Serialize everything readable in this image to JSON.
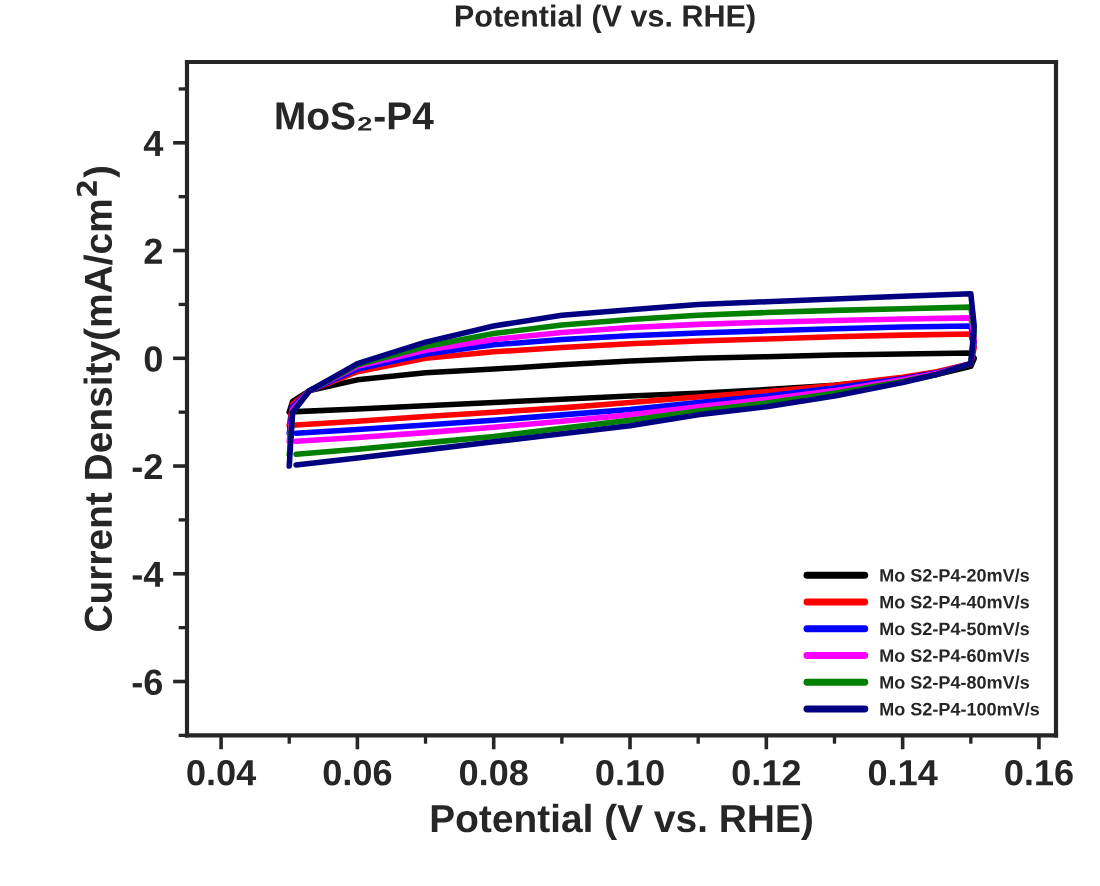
{
  "chart_data": {
    "type": "line",
    "xlabel": "Potential (V vs. RHE)",
    "ylabel": "Current Density(mA/cm$^{2}$)",
    "annotations": [
      "Potential (V vs. RHE)",
      "MoS₂-P4"
    ],
    "xlim": [
      0.035,
      0.1625
    ],
    "xticks": [
      {
        "value": 0.04,
        "label": "0.04"
      },
      {
        "value": 0.06,
        "label": "0.06"
      },
      {
        "value": 0.08,
        "label": "0.08"
      },
      {
        "value": 0.1,
        "label": "0.10"
      },
      {
        "value": 0.12,
        "label": "0.12"
      },
      {
        "value": 0.14,
        "label": "0.14"
      },
      {
        "value": 0.16,
        "label": "0.16"
      }
    ],
    "ylim": [
      -7,
      5.5
    ],
    "yticks": [
      -6,
      -4,
      -2,
      0,
      2,
      4
    ],
    "legend": "bottom right",
    "marker": "none",
    "line_style": "solid",
    "grid": false,
    "x": [
      0.05,
      0.0505,
      0.053,
      0.06,
      0.07,
      0.08,
      0.09,
      0.1,
      0.11,
      0.12,
      0.13,
      0.14,
      0.15,
      0.1505,
      0.15,
      0.145,
      0.14,
      0.13,
      0.12,
      0.11,
      0.1,
      0.09,
      0.08,
      0.07,
      0.06,
      0.051
    ],
    "series": [
      {
        "name": "Mo S2-P4-20mV/s",
        "color": "#000000",
        "values": [
          -1.0,
          -0.8,
          -0.6,
          -0.4,
          -0.27,
          -0.2,
          -0.12,
          -0.05,
          0.0,
          0.03,
          0.06,
          0.08,
          0.1,
          0.0,
          -0.15,
          -0.3,
          -0.38,
          -0.5,
          -0.58,
          -0.65,
          -0.7,
          -0.76,
          -0.82,
          -0.88,
          -0.94,
          -0.99
        ]
      },
      {
        "name": "Mo S2-P4-40mV/s",
        "color": "#ff0000",
        "values": [
          -1.25,
          -0.85,
          -0.6,
          -0.25,
          0.0,
          0.12,
          0.2,
          0.27,
          0.32,
          0.36,
          0.4,
          0.43,
          0.45,
          0.2,
          -0.1,
          -0.25,
          -0.35,
          -0.5,
          -0.62,
          -0.72,
          -0.82,
          -0.92,
          -1.0,
          -1.08,
          -1.17,
          -1.24
        ]
      },
      {
        "name": "Mo S2-P4-50mV/s",
        "color": "#0000ff",
        "values": [
          -1.4,
          -0.9,
          -0.6,
          -0.2,
          0.08,
          0.25,
          0.35,
          0.42,
          0.47,
          0.51,
          0.55,
          0.58,
          0.6,
          0.3,
          -0.1,
          -0.27,
          -0.38,
          -0.55,
          -0.7,
          -0.82,
          -0.95,
          -1.05,
          -1.15,
          -1.24,
          -1.32,
          -1.39
        ]
      },
      {
        "name": "Mo S2-P4-60mV/s",
        "color": "#ff00ff",
        "values": [
          -1.55,
          -0.95,
          -0.6,
          -0.15,
          0.15,
          0.35,
          0.48,
          0.57,
          0.63,
          0.67,
          0.7,
          0.73,
          0.75,
          0.4,
          -0.1,
          -0.28,
          -0.4,
          -0.6,
          -0.76,
          -0.9,
          -1.05,
          -1.17,
          -1.28,
          -1.38,
          -1.47,
          -1.54
        ]
      },
      {
        "name": "Mo S2-P4-80mV/s",
        "color": "#008000",
        "values": [
          -1.8,
          -1.0,
          -0.6,
          -0.12,
          0.22,
          0.46,
          0.62,
          0.72,
          0.8,
          0.85,
          0.89,
          0.92,
          0.95,
          0.5,
          -0.1,
          -0.3,
          -0.43,
          -0.65,
          -0.83,
          -0.98,
          -1.15,
          -1.3,
          -1.45,
          -1.57,
          -1.69,
          -1.78
        ]
      },
      {
        "name": "Mo S2-P4-100mV/s",
        "color": "#000080",
        "values": [
          -2.0,
          -1.0,
          -0.6,
          -0.1,
          0.3,
          0.6,
          0.8,
          0.9,
          1.0,
          1.05,
          1.1,
          1.15,
          1.2,
          0.6,
          -0.1,
          -0.3,
          -0.45,
          -0.7,
          -0.9,
          -1.05,
          -1.25,
          -1.4,
          -1.55,
          -1.7,
          -1.85,
          -1.98
        ]
      }
    ]
  }
}
